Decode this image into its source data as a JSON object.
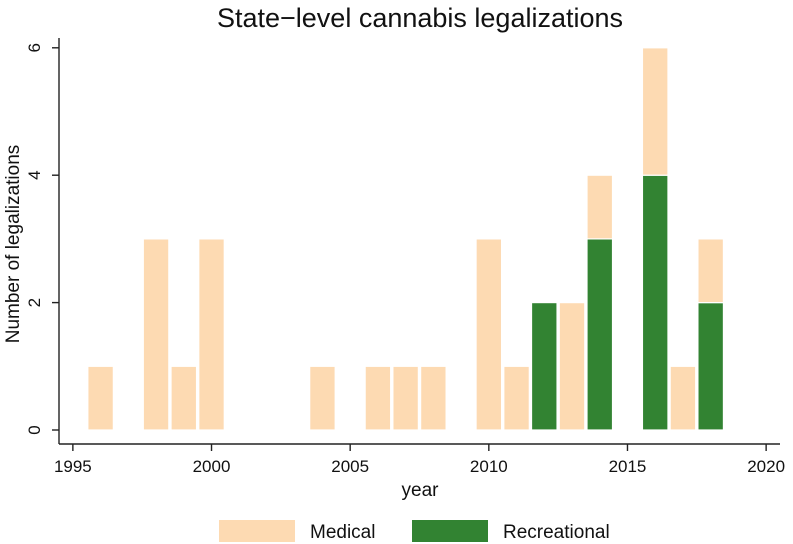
{
  "chart_data": {
    "type": "bar",
    "stacked": true,
    "title": "State−level cannabis legalizations",
    "xlabel": "year",
    "ylabel": "Number of legalizations",
    "xlim": [
      1994.5,
      2020.5
    ],
    "ylim": [
      0,
      6.3
    ],
    "xticks": [
      1995,
      2000,
      2005,
      2010,
      2015,
      2020
    ],
    "yticks": [
      0,
      2,
      4,
      6
    ],
    "legend_position": "bottom",
    "colors": {
      "Medical": "#FDDAB2",
      "Recreational": "#328332",
      "axis": "#222222"
    },
    "series": [
      {
        "name": "Medical",
        "x": [
          1996,
          1998,
          1999,
          2000,
          2004,
          2006,
          2007,
          2008,
          2010,
          2011,
          2012,
          2013,
          2014,
          2016,
          2017,
          2018
        ],
        "values": [
          1,
          3,
          1,
          3,
          1,
          1,
          1,
          1,
          3,
          1,
          0,
          2,
          1,
          2,
          1,
          1
        ]
      },
      {
        "name": "Recreational",
        "x": [
          1996,
          1998,
          1999,
          2000,
          2004,
          2006,
          2007,
          2008,
          2010,
          2011,
          2012,
          2013,
          2014,
          2016,
          2017,
          2018
        ],
        "values": [
          0,
          0,
          0,
          0,
          0,
          0,
          0,
          0,
          0,
          0,
          2,
          0,
          3,
          4,
          0,
          2
        ]
      }
    ]
  }
}
